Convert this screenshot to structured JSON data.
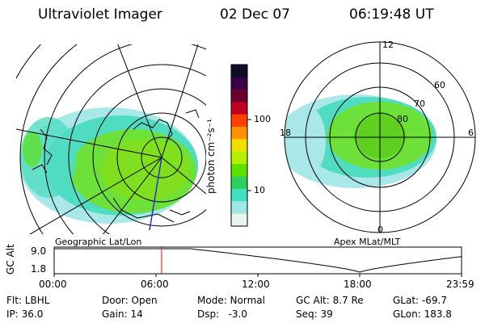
{
  "header": {
    "title": "Ultraviolet Imager",
    "date": "02 Dec 07",
    "time": "06:19:48 UT"
  },
  "left_map": {
    "label": "Geographic Lat/Lon"
  },
  "colorbar": {
    "unit": "photon cm⁻²s⁻¹",
    "tick_100": "100",
    "tick_10": "10",
    "colors": [
      "#0d0d2a",
      "#3a004a",
      "#6a0030",
      "#c00020",
      "#ff4000",
      "#ff9000",
      "#f0e000",
      "#b4f000",
      "#60e000",
      "#30d060",
      "#40e0c0",
      "#a0e8e8",
      "#e8f4f4"
    ]
  },
  "right_polar": {
    "label": "Apex MLat/MLT",
    "mlt_12": "12",
    "mlt_18": "18",
    "mlt_6": "6",
    "mlt_0": "0",
    "lat_60": "60",
    "lat_70": "70",
    "lat_80": "80"
  },
  "gc_alt_plot": {
    "ylabel": "GC Alt",
    "y_top": "9.0",
    "y_bottom": "1.8",
    "x_ticks": [
      "00:00",
      "06:00",
      "12:00",
      "18:00",
      "23:59"
    ],
    "current_time_marker_hours": 6.33,
    "line_color": "#ff0000"
  },
  "footer": {
    "flt": "Flt: LBHL",
    "ip": "IP: 36.0",
    "door": "Door: Open",
    "gain": "Gain: 14",
    "mode": "Mode: Normal",
    "dsp": "Dsp:   -3.0",
    "gc_alt": "GC Alt: 8.7 Re",
    "seq": "Seq: 39",
    "glat": "GLat: -69.7",
    "glon": "GLon: 183.8"
  }
}
